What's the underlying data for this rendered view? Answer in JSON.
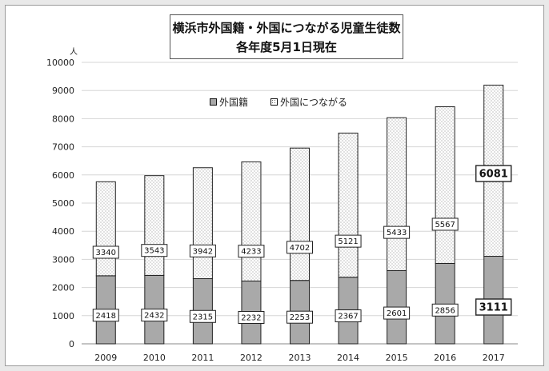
{
  "chart_data": {
    "type": "bar",
    "stacked": true,
    "title": "横浜市外国籍・外国につながる児童生徒数",
    "subtitle": "各年度5月1日現在",
    "ylabel": "人",
    "xlabel": "",
    "ylim": [
      0,
      10000
    ],
    "yticks": [
      0,
      1000,
      2000,
      3000,
      4000,
      5000,
      6000,
      7000,
      8000,
      9000,
      10000
    ],
    "grid": true,
    "legend_position": "top-center",
    "categories": [
      "2009",
      "2010",
      "2011",
      "2012",
      "2013",
      "2014",
      "2015",
      "2016",
      "2017"
    ],
    "series": [
      {
        "name": "外国籍",
        "values": [
          2418,
          2432,
          2315,
          2232,
          2253,
          2367,
          2601,
          2856,
          3111
        ],
        "color": "#a9a9a9",
        "pattern": "solid"
      },
      {
        "name": "外国につながる",
        "values": [
          3340,
          3543,
          3942,
          4233,
          4702,
          5121,
          5433,
          5567,
          6081
        ],
        "color": "#ffffff",
        "pattern": "dotted"
      }
    ],
    "emphasized_category": "2017"
  }
}
